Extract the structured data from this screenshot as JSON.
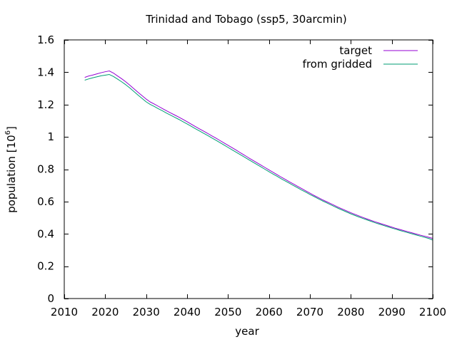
{
  "chart_data": {
    "type": "line",
    "title": "Trinidad and Tobago (ssp5, 30arcmin)",
    "xlabel": "year",
    "ylabel_main": "population [10",
    "ylabel_exponent": "6",
    "ylabel_close": "]",
    "xlim": [
      2010,
      2100
    ],
    "ylim": [
      0,
      1.6
    ],
    "xticks": [
      2010,
      2020,
      2030,
      2040,
      2050,
      2060,
      2070,
      2080,
      2090,
      2100
    ],
    "yticks": [
      0,
      0.2,
      0.4,
      0.6,
      0.8,
      1,
      1.2,
      1.4,
      1.6
    ],
    "yticklabels": [
      "0",
      "0.2",
      "0.4",
      "0.6",
      "0.8",
      "1",
      "1.2",
      "1.4",
      "1.6"
    ],
    "grid": false,
    "legend_position": "top-right",
    "series": [
      {
        "name": "target",
        "color": "#9400d3",
        "x": [
          2015,
          2016,
          2017,
          2018,
          2019,
          2020,
          2021,
          2022,
          2023,
          2024,
          2025,
          2026,
          2027,
          2028,
          2029,
          2030,
          2031,
          2032,
          2033,
          2034,
          2035,
          2036,
          2037,
          2038,
          2039,
          2040,
          2041,
          2042,
          2043,
          2044,
          2045,
          2046,
          2047,
          2048,
          2049,
          2050,
          2051,
          2052,
          2053,
          2054,
          2055,
          2056,
          2057,
          2058,
          2059,
          2060,
          2061,
          2062,
          2063,
          2064,
          2065,
          2066,
          2067,
          2068,
          2069,
          2070,
          2071,
          2072,
          2073,
          2074,
          2075,
          2076,
          2077,
          2078,
          2079,
          2080,
          2081,
          2082,
          2083,
          2084,
          2085,
          2086,
          2087,
          2088,
          2089,
          2090,
          2091,
          2092,
          2093,
          2094,
          2095,
          2096,
          2097,
          2098,
          2099,
          2100
        ],
        "y": [
          1.368,
          1.377,
          1.383,
          1.39,
          1.397,
          1.403,
          1.408,
          1.395,
          1.377,
          1.36,
          1.341,
          1.32,
          1.298,
          1.276,
          1.255,
          1.234,
          1.216,
          1.203,
          1.189,
          1.175,
          1.161,
          1.148,
          1.135,
          1.122,
          1.108,
          1.094,
          1.079,
          1.064,
          1.05,
          1.036,
          1.022,
          1.007,
          0.993,
          0.978,
          0.963,
          0.948,
          0.933,
          0.918,
          0.902,
          0.887,
          0.871,
          0.856,
          0.841,
          0.826,
          0.811,
          0.796,
          0.781,
          0.766,
          0.751,
          0.737,
          0.722,
          0.708,
          0.694,
          0.68,
          0.666,
          0.652,
          0.638,
          0.625,
          0.612,
          0.6,
          0.588,
          0.576,
          0.564,
          0.553,
          0.542,
          0.531,
          0.521,
          0.511,
          0.501,
          0.492,
          0.483,
          0.474,
          0.466,
          0.458,
          0.45,
          0.442,
          0.434,
          0.427,
          0.42,
          0.413,
          0.406,
          0.399,
          0.392,
          0.386,
          0.379,
          0.372
        ]
      },
      {
        "name": "from gridded",
        "color": "#009e73",
        "x": [
          2015,
          2016,
          2017,
          2018,
          2019,
          2020,
          2021,
          2022,
          2023,
          2024,
          2025,
          2026,
          2027,
          2028,
          2029,
          2030,
          2031,
          2032,
          2033,
          2034,
          2035,
          2036,
          2037,
          2038,
          2039,
          2040,
          2041,
          2042,
          2043,
          2044,
          2045,
          2046,
          2047,
          2048,
          2049,
          2050,
          2051,
          2052,
          2053,
          2054,
          2055,
          2056,
          2057,
          2058,
          2059,
          2060,
          2061,
          2062,
          2063,
          2064,
          2065,
          2066,
          2067,
          2068,
          2069,
          2070,
          2071,
          2072,
          2073,
          2074,
          2075,
          2076,
          2077,
          2078,
          2079,
          2080,
          2081,
          2082,
          2083,
          2084,
          2085,
          2086,
          2087,
          2088,
          2089,
          2090,
          2091,
          2092,
          2093,
          2094,
          2095,
          2096,
          2097,
          2098,
          2099,
          2100
        ],
        "y": [
          1.351,
          1.359,
          1.366,
          1.372,
          1.378,
          1.382,
          1.386,
          1.374,
          1.358,
          1.341,
          1.323,
          1.303,
          1.281,
          1.259,
          1.238,
          1.217,
          1.201,
          1.188,
          1.174,
          1.161,
          1.147,
          1.134,
          1.121,
          1.108,
          1.094,
          1.08,
          1.066,
          1.051,
          1.037,
          1.023,
          1.009,
          0.994,
          0.98,
          0.965,
          0.95,
          0.935,
          0.92,
          0.905,
          0.89,
          0.875,
          0.86,
          0.845,
          0.83,
          0.815,
          0.8,
          0.785,
          0.77,
          0.756,
          0.741,
          0.727,
          0.713,
          0.699,
          0.685,
          0.671,
          0.658,
          0.644,
          0.631,
          0.618,
          0.605,
          0.593,
          0.581,
          0.569,
          0.557,
          0.546,
          0.535,
          0.524,
          0.514,
          0.504,
          0.495,
          0.486,
          0.477,
          0.468,
          0.46,
          0.452,
          0.444,
          0.436,
          0.429,
          0.421,
          0.414,
          0.407,
          0.4,
          0.393,
          0.386,
          0.379,
          0.372,
          0.362
        ]
      }
    ]
  }
}
